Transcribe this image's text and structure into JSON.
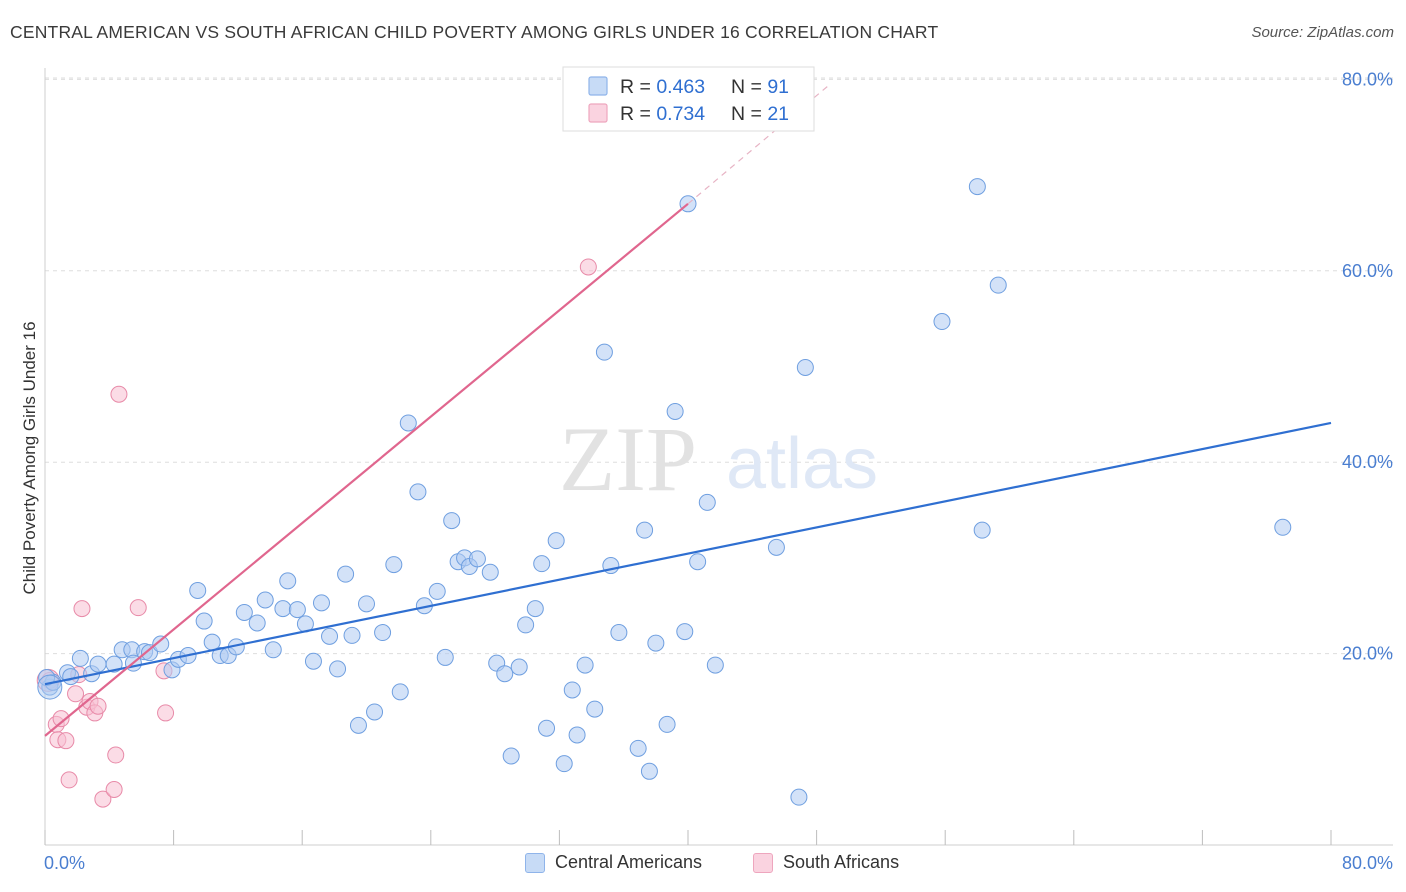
{
  "title": "CENTRAL AMERICAN VS SOUTH AFRICAN CHILD POVERTY AMONG GIRLS UNDER 16 CORRELATION CHART",
  "source": "Source: ZipAtlas.com",
  "watermark": {
    "zip": "ZIP",
    "atlas": "atlas"
  },
  "colors": {
    "blue_fill": "#aecbf2",
    "blue_stroke": "#6f9fe0",
    "blue_line": "#2f6fd1",
    "pink_fill": "#f7c0d2",
    "pink_stroke": "#e88aa8",
    "pink_line": "#e0668e",
    "tick_text": "#4a7ed0",
    "grid": "#dddddd"
  },
  "legend_top": [
    {
      "r_label": "R = ",
      "r_value": "0.463",
      "n_label": "N = ",
      "n_value": "91",
      "color": "blue"
    },
    {
      "r_label": "R = ",
      "r_value": "0.734",
      "n_label": "N = ",
      "n_value": "21",
      "color": "pink"
    }
  ],
  "chart_data": {
    "type": "scatter",
    "title": "CENTRAL AMERICAN VS SOUTH AFRICAN CHILD POVERTY AMONG GIRLS UNDER 16 CORRELATION CHART",
    "xlabel": "",
    "ylabel": "Child Poverty Among Girls Under 16",
    "xlim": [
      0,
      80
    ],
    "ylim": [
      0,
      82
    ],
    "x_tick_labels": [
      "0.0%",
      "80.0%"
    ],
    "y_tick_labels": [
      "20.0%",
      "40.0%",
      "60.0%",
      "80.0%"
    ],
    "y_ticks": [
      20,
      40,
      60,
      80
    ],
    "grid": true,
    "legend_placement": "bottom",
    "series": [
      {
        "name": "Central Americans",
        "color": "blue",
        "trend": {
          "x": [
            0,
            80
          ],
          "y": [
            16.8,
            44.1
          ]
        },
        "points": [
          [
            0.3,
            16.5
          ],
          [
            0.5,
            17.0
          ],
          [
            1.4,
            18.0
          ],
          [
            1.6,
            17.6
          ],
          [
            2.2,
            19.5
          ],
          [
            2.9,
            17.9
          ],
          [
            3.3,
            18.9
          ],
          [
            4.3,
            18.9
          ],
          [
            4.8,
            20.4
          ],
          [
            5.4,
            20.4
          ],
          [
            5.5,
            19.0
          ],
          [
            6.2,
            20.2
          ],
          [
            6.5,
            20.1
          ],
          [
            7.2,
            21.0
          ],
          [
            7.9,
            18.3
          ],
          [
            8.3,
            19.4
          ],
          [
            8.9,
            19.8
          ],
          [
            9.5,
            26.6
          ],
          [
            9.9,
            23.4
          ],
          [
            10.4,
            21.2
          ],
          [
            10.9,
            19.8
          ],
          [
            11.4,
            19.8
          ],
          [
            11.9,
            20.7
          ],
          [
            12.4,
            24.3
          ],
          [
            13.2,
            23.2
          ],
          [
            13.7,
            25.6
          ],
          [
            14.2,
            20.4
          ],
          [
            14.8,
            24.7
          ],
          [
            15.1,
            27.6
          ],
          [
            15.7,
            24.6
          ],
          [
            16.2,
            23.1
          ],
          [
            16.7,
            19.2
          ],
          [
            17.2,
            25.3
          ],
          [
            17.7,
            21.8
          ],
          [
            18.2,
            18.4
          ],
          [
            18.7,
            28.3
          ],
          [
            19.1,
            21.9
          ],
          [
            19.5,
            12.5
          ],
          [
            20.0,
            25.2
          ],
          [
            20.5,
            13.9
          ],
          [
            21.0,
            22.2
          ],
          [
            21.7,
            29.3
          ],
          [
            22.1,
            16.0
          ],
          [
            22.6,
            44.1
          ],
          [
            23.2,
            36.9
          ],
          [
            23.6,
            25.0
          ],
          [
            24.4,
            26.5
          ],
          [
            24.9,
            19.6
          ],
          [
            25.3,
            33.9
          ],
          [
            25.7,
            29.6
          ],
          [
            26.1,
            30.0
          ],
          [
            26.4,
            29.1
          ],
          [
            26.9,
            29.9
          ],
          [
            27.7,
            28.5
          ],
          [
            28.1,
            19.0
          ],
          [
            28.6,
            17.9
          ],
          [
            29.0,
            9.3
          ],
          [
            29.5,
            18.6
          ],
          [
            29.9,
            23.0
          ],
          [
            30.5,
            24.7
          ],
          [
            30.9,
            29.4
          ],
          [
            31.2,
            12.2
          ],
          [
            31.8,
            31.8
          ],
          [
            32.3,
            8.5
          ],
          [
            32.8,
            16.2
          ],
          [
            33.1,
            11.5
          ],
          [
            33.6,
            18.8
          ],
          [
            34.2,
            14.2
          ],
          [
            34.8,
            51.5
          ],
          [
            35.2,
            29.2
          ],
          [
            35.7,
            22.2
          ],
          [
            36.9,
            10.1
          ],
          [
            37.3,
            32.9
          ],
          [
            37.6,
            7.7
          ],
          [
            38.0,
            21.1
          ],
          [
            38.7,
            12.6
          ],
          [
            39.2,
            45.3
          ],
          [
            39.8,
            22.3
          ],
          [
            40.0,
            67.0
          ],
          [
            40.6,
            29.6
          ],
          [
            41.2,
            35.8
          ],
          [
            41.7,
            18.8
          ],
          [
            45.5,
            31.1
          ],
          [
            46.9,
            5.0
          ],
          [
            47.3,
            49.9
          ],
          [
            55.8,
            54.7
          ],
          [
            58.0,
            68.8
          ],
          [
            58.3,
            32.9
          ],
          [
            59.3,
            58.5
          ],
          [
            77.0,
            33.2
          ],
          [
            0.1,
            17.5
          ]
        ]
      },
      {
        "name": "South Africans",
        "color": "pink",
        "trend": {
          "x": [
            0,
            40
          ],
          "y": [
            11.4,
            67.0
          ]
        },
        "trend_dashed": {
          "x": [
            40,
            48.7
          ],
          "y": [
            67.0,
            79.3
          ]
        },
        "points": [
          [
            0.3,
            17.2
          ],
          [
            0.7,
            12.6
          ],
          [
            0.8,
            11.0
          ],
          [
            1.0,
            13.2
          ],
          [
            1.3,
            10.9
          ],
          [
            1.5,
            6.8
          ],
          [
            1.9,
            15.8
          ],
          [
            2.1,
            17.8
          ],
          [
            2.3,
            24.7
          ],
          [
            2.6,
            14.4
          ],
          [
            2.8,
            15.0
          ],
          [
            3.1,
            13.8
          ],
          [
            3.3,
            14.5
          ],
          [
            3.6,
            4.8
          ],
          [
            4.3,
            5.8
          ],
          [
            4.4,
            9.4
          ],
          [
            4.6,
            47.1
          ],
          [
            5.8,
            24.8
          ],
          [
            7.4,
            18.2
          ],
          [
            7.5,
            13.8
          ],
          [
            33.8,
            60.4
          ]
        ]
      }
    ]
  }
}
